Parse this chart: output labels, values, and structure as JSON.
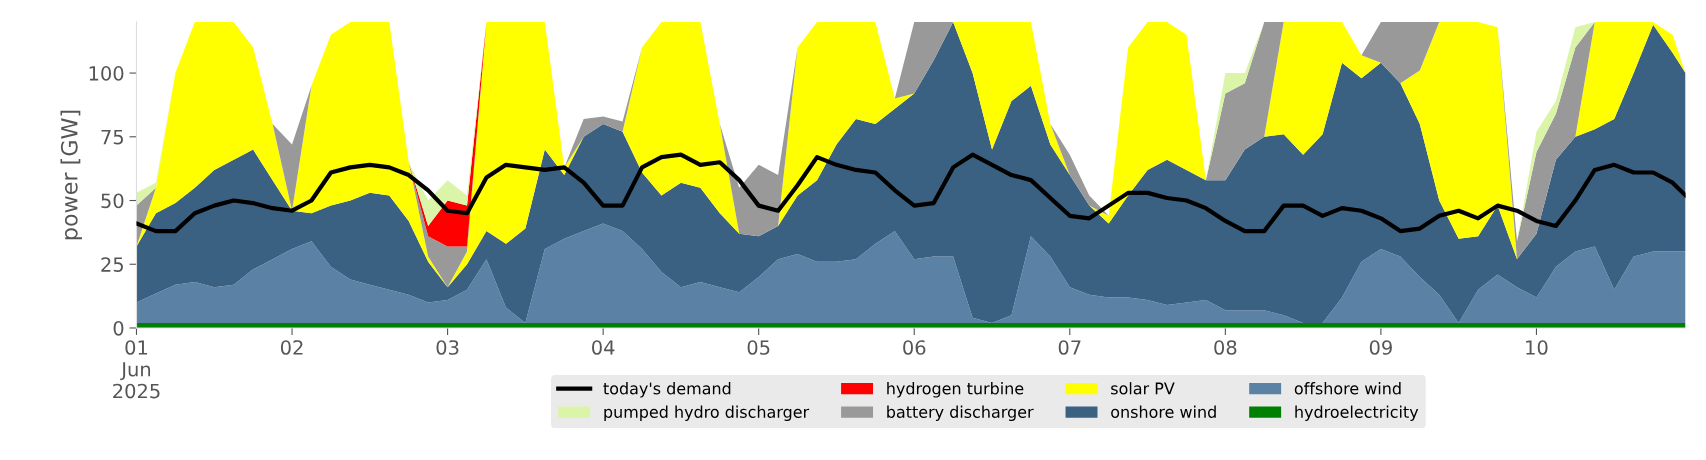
{
  "chart_data": {
    "type": "area",
    "stacked": true,
    "ylabel": "power [GW]",
    "x": [
      "2025-06-01T00:00",
      "2025-06-01T03:00",
      "2025-06-01T06:00",
      "2025-06-01T09:00",
      "2025-06-01T12:00",
      "2025-06-01T15:00",
      "2025-06-01T18:00",
      "2025-06-01T21:00",
      "2025-06-02T00:00",
      "2025-06-02T03:00",
      "2025-06-02T06:00",
      "2025-06-02T09:00",
      "2025-06-02T12:00",
      "2025-06-02T15:00",
      "2025-06-02T18:00",
      "2025-06-02T21:00",
      "2025-06-03T00:00",
      "2025-06-03T03:00",
      "2025-06-03T06:00",
      "2025-06-03T09:00",
      "2025-06-03T12:00",
      "2025-06-03T15:00",
      "2025-06-03T18:00",
      "2025-06-03T21:00",
      "2025-06-04T00:00",
      "2025-06-04T03:00",
      "2025-06-04T06:00",
      "2025-06-04T09:00",
      "2025-06-04T12:00",
      "2025-06-04T15:00",
      "2025-06-04T18:00",
      "2025-06-04T21:00",
      "2025-06-05T00:00",
      "2025-06-05T03:00",
      "2025-06-05T06:00",
      "2025-06-05T09:00",
      "2025-06-05T12:00",
      "2025-06-05T15:00",
      "2025-06-05T18:00",
      "2025-06-05T21:00",
      "2025-06-06T00:00",
      "2025-06-06T03:00",
      "2025-06-06T06:00",
      "2025-06-06T09:00",
      "2025-06-06T12:00",
      "2025-06-06T15:00",
      "2025-06-06T18:00",
      "2025-06-06T21:00",
      "2025-06-07T00:00",
      "2025-06-07T03:00",
      "2025-06-07T06:00",
      "2025-06-07T09:00",
      "2025-06-07T12:00",
      "2025-06-07T15:00",
      "2025-06-07T18:00",
      "2025-06-07T21:00",
      "2025-06-08T00:00",
      "2025-06-08T03:00",
      "2025-06-08T06:00",
      "2025-06-08T09:00",
      "2025-06-08T12:00",
      "2025-06-08T15:00",
      "2025-06-08T18:00",
      "2025-06-08T21:00",
      "2025-06-09T00:00",
      "2025-06-09T03:00",
      "2025-06-09T06:00",
      "2025-06-09T09:00",
      "2025-06-09T12:00",
      "2025-06-09T15:00",
      "2025-06-09T18:00",
      "2025-06-09T21:00",
      "2025-06-10T00:00",
      "2025-06-10T03:00",
      "2025-06-10T06:00",
      "2025-06-10T09:00",
      "2025-06-10T12:00",
      "2025-06-10T15:00",
      "2025-06-10T18:00",
      "2025-06-10T21:00",
      "2025-06-10T23:00"
    ],
    "xlim": [
      "2025-06-01T00:00",
      "2025-06-10T23:00"
    ],
    "xticks": [
      {
        "value": "2025-06-01",
        "label": "01\nJun\n2025"
      },
      {
        "value": "2025-06-02",
        "label": "02"
      },
      {
        "value": "2025-06-03",
        "label": "03"
      },
      {
        "value": "2025-06-04",
        "label": "04"
      },
      {
        "value": "2025-06-05",
        "label": "05"
      },
      {
        "value": "2025-06-06",
        "label": "06"
      },
      {
        "value": "2025-06-07",
        "label": "07"
      },
      {
        "value": "2025-06-08",
        "label": "08"
      },
      {
        "value": "2025-06-09",
        "label": "09"
      },
      {
        "value": "2025-06-10",
        "label": "10"
      }
    ],
    "ylim": [
      0,
      120
    ],
    "yticks": [
      0,
      25,
      50,
      75,
      100
    ],
    "grid": false,
    "legend": "bottom",
    "series": [
      {
        "name": "hydroelectricity",
        "color": "#008000",
        "values": [
          2,
          2,
          2,
          2,
          2,
          2,
          2,
          2,
          2,
          2,
          2,
          2,
          2,
          2,
          2,
          2,
          2,
          2,
          2,
          2,
          2,
          2,
          2,
          2,
          2,
          2,
          2,
          2,
          2,
          2,
          2,
          2,
          2,
          2,
          2,
          2,
          2,
          2,
          2,
          2,
          2,
          2,
          2,
          2,
          2,
          2,
          2,
          2,
          2,
          2,
          2,
          2,
          2,
          2,
          2,
          2,
          2,
          2,
          2,
          2,
          2,
          2,
          2,
          2,
          2,
          2,
          2,
          2,
          2,
          2,
          2,
          2,
          2,
          2,
          2,
          2,
          2,
          2,
          2,
          2,
          2
        ]
      },
      {
        "name": "offshore wind",
        "color": "#5b82a5",
        "values": [
          8,
          11.5,
          15,
          16,
          14,
          15,
          21,
          25,
          29,
          32,
          22,
          17,
          15,
          13,
          11,
          8,
          9,
          13,
          25,
          6,
          0,
          29,
          33,
          36,
          39,
          36,
          29,
          20,
          14,
          16,
          14,
          12,
          18,
          25,
          27,
          24,
          24,
          25,
          31,
          36,
          25,
          26,
          26,
          2,
          0,
          3,
          34,
          26,
          14,
          11,
          10,
          10,
          9,
          7,
          8,
          9,
          5,
          5,
          5,
          3,
          0,
          0,
          10,
          24,
          29,
          26,
          18,
          11,
          0,
          13,
          19,
          14,
          10,
          22,
          28,
          30,
          13,
          26,
          28,
          28,
          28
        ]
      },
      {
        "name": "onshore wind",
        "color": "#3b6182",
        "values": [
          22,
          31.5,
          32,
          37,
          46,
          49,
          47,
          31,
          15,
          11,
          24,
          31,
          36,
          37,
          29,
          16,
          5,
          10,
          11,
          25,
          37,
          39,
          25,
          37,
          39,
          39,
          30,
          30,
          41,
          37,
          29,
          23,
          16,
          13,
          23,
          32,
          46,
          55,
          47,
          48,
          65,
          77,
          92,
          96,
          68,
          84,
          59,
          44,
          44,
          35,
          29,
          40,
          51,
          57,
          52,
          47,
          51,
          63,
          68,
          71,
          66,
          74,
          92,
          72,
          73,
          68,
          60,
          37,
          33,
          21,
          27,
          11,
          25,
          42,
          45,
          46,
          67,
          72,
          89,
          78,
          70
        ]
      },
      {
        "name": "solar PV",
        "color": "#ffff00",
        "values": [
          0,
          10,
          51,
          65,
          58,
          54,
          40,
          22,
          0,
          50,
          67,
          70,
          67,
          68,
          23,
          2,
          0,
          5,
          82,
          87,
          81,
          50,
          3,
          0,
          null,
          0,
          49,
          68,
          63,
          65,
          35,
          0,
          null,
          0,
          58,
          62,
          48,
          38,
          40,
          4,
          0,
          null,
          0,
          20,
          50,
          31,
          25,
          8,
          0,
          0,
          3,
          58,
          58,
          54,
          53,
          0,
          null,
          null,
          0,
          44,
          52,
          44,
          16,
          9,
          0,
          0,
          21,
          70,
          85,
          84,
          70,
          0,
          null,
          null,
          0,
          42,
          38,
          20,
          1,
          7,
          0
        ]
      },
      {
        "name": "battery discharger",
        "color": "#999999",
        "values": [
          16,
          0,
          null,
          null,
          null,
          null,
          null,
          0,
          26,
          0,
          null,
          null,
          null,
          null,
          0,
          8,
          16,
          2,
          0,
          null,
          null,
          null,
          0,
          7,
          3,
          4,
          0,
          null,
          null,
          null,
          0,
          18,
          28,
          20,
          0,
          null,
          null,
          null,
          null,
          0,
          28,
          15,
          0,
          null,
          null,
          null,
          null,
          0,
          8,
          4,
          0,
          null,
          null,
          null,
          null,
          0,
          34,
          26,
          45,
          0,
          null,
          null,
          null,
          0,
          16,
          24,
          19,
          0,
          null,
          null,
          0,
          7,
          32,
          18,
          35,
          0,
          null,
          null,
          null,
          null,
          null
        ]
      },
      {
        "name": "hydrogen turbine",
        "color": "#ff0000",
        "values": [
          null,
          null,
          null,
          null,
          null,
          null,
          null,
          null,
          null,
          null,
          null,
          null,
          null,
          null,
          0,
          4,
          18,
          16,
          0,
          null,
          null,
          null,
          null,
          null,
          null,
          null,
          null,
          null,
          null,
          null,
          null,
          null,
          null,
          null,
          null,
          null,
          null,
          null,
          null,
          null,
          null,
          null,
          null,
          null,
          null,
          null,
          null,
          null,
          null,
          null,
          null,
          null,
          null,
          null,
          null,
          null,
          null,
          null,
          null,
          null,
          null,
          null,
          null,
          null,
          null,
          null,
          null,
          null,
          null,
          null,
          null,
          null,
          null,
          null,
          null,
          null,
          null,
          null,
          null,
          null,
          null
        ]
      },
      {
        "name": "pumped hydro discharger",
        "color": "#dbf5a8",
        "values": [
          5,
          2,
          0,
          null,
          null,
          null,
          null,
          null,
          null,
          null,
          null,
          null,
          null,
          null,
          0,
          10,
          8,
          4,
          0,
          null,
          null,
          null,
          null,
          null,
          null,
          null,
          null,
          null,
          null,
          null,
          null,
          null,
          null,
          null,
          null,
          null,
          null,
          null,
          null,
          null,
          null,
          null,
          null,
          null,
          null,
          null,
          null,
          null,
          null,
          null,
          null,
          null,
          null,
          null,
          null,
          0,
          8,
          4,
          0,
          null,
          null,
          null,
          null,
          null,
          null,
          null,
          null,
          null,
          null,
          null,
          null,
          0,
          8,
          5,
          8,
          0,
          null,
          null,
          null,
          null,
          null
        ]
      },
      {
        "name": "today's demand",
        "type": "line",
        "color": "#000000",
        "line_style": "solid",
        "marker": "none",
        "values": [
          41,
          38,
          38,
          45,
          48,
          50,
          49,
          47,
          46,
          50,
          61,
          63,
          64,
          63,
          60,
          54,
          46,
          45,
          59,
          64,
          63,
          62,
          63,
          57,
          48,
          48,
          63,
          67,
          68,
          64,
          65,
          58,
          48,
          46,
          56,
          67,
          64,
          62,
          61,
          54,
          48,
          49,
          63,
          68,
          64,
          60,
          58,
          51,
          44,
          43,
          48,
          53,
          53,
          51,
          50,
          47,
          42,
          38,
          38,
          48,
          48,
          44,
          47,
          46,
          43,
          38,
          39,
          44,
          46,
          43,
          48,
          46,
          42,
          40,
          50,
          62,
          64,
          61,
          61,
          57,
          52
        ]
      }
    ]
  }
}
